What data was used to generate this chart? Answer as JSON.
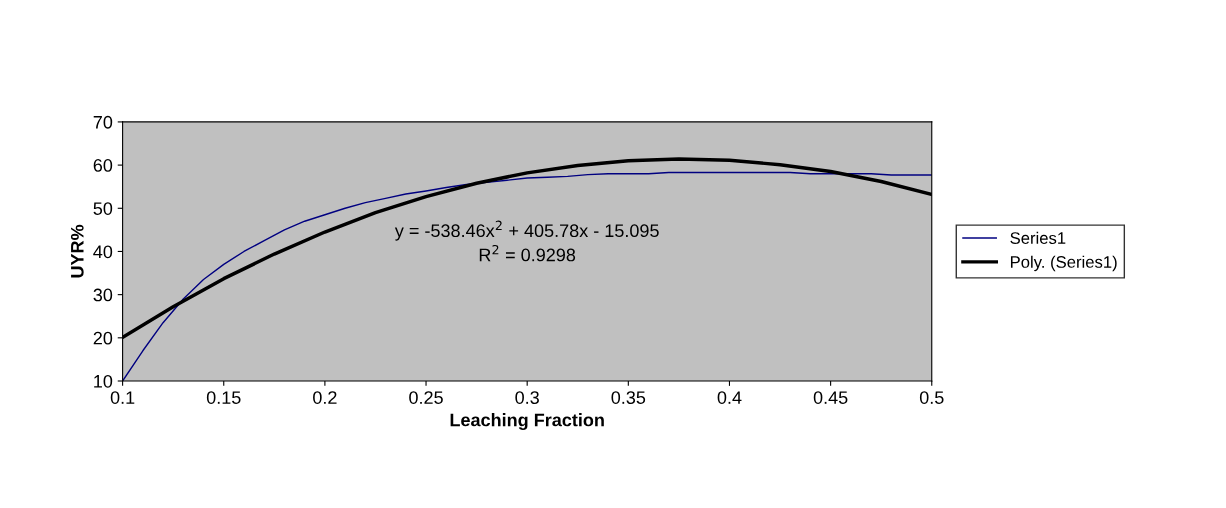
{
  "chart_data": {
    "type": "line",
    "xlabel": "Leaching Fraction",
    "ylabel": "UYR%",
    "xlim": [
      0.1,
      0.5
    ],
    "xticks": [
      0.1,
      0.15,
      0.2,
      0.25,
      0.3,
      0.35,
      0.4,
      0.45,
      0.5
    ],
    "ylim": [
      10,
      70
    ],
    "yticks": [
      10,
      20,
      30,
      40,
      50,
      60,
      70
    ],
    "grid": false,
    "legend": "right",
    "marker": "none",
    "line_style": "solid",
    "annotations": [
      "y = -538.46x$^{2}$ + 405.78x - 15.095",
      "R$^{2}$ = 0.9298"
    ],
    "series": [
      {
        "name": "Series1",
        "color": "#000080",
        "x": [
          0.1,
          0.11,
          0.12,
          0.13,
          0.14,
          0.15,
          0.16,
          0.17,
          0.18,
          0.19,
          0.2,
          0.21,
          0.22,
          0.23,
          0.24,
          0.25,
          0.26,
          0.27,
          0.28,
          0.29,
          0.3,
          0.31,
          0.32,
          0.33,
          0.34,
          0.35,
          0.36,
          0.37,
          0.38,
          0.39,
          0.4,
          0.41,
          0.42,
          0.43,
          0.44,
          0.45,
          0.46,
          0.47,
          0.48,
          0.49,
          0.5
        ],
        "values": [
          10,
          17,
          23.5,
          29,
          33.5,
          37,
          40,
          42.5,
          45,
          47,
          48.5,
          50,
          51.3,
          52.3,
          53.3,
          54,
          54.8,
          55.5,
          56,
          56.5,
          57,
          57.2,
          57.4,
          57.8,
          58,
          58,
          58,
          58.3,
          58.3,
          58.3,
          58.3,
          58.3,
          58.3,
          58.3,
          58,
          58,
          58,
          58,
          57.7,
          57.7,
          57.7
        ]
      },
      {
        "name": "Poly. (Series1)",
        "color": "#000000",
        "x": [
          0.1,
          0.125,
          0.15,
          0.175,
          0.2,
          0.225,
          0.25,
          0.275,
          0.3,
          0.325,
          0.35,
          0.375,
          0.4,
          0.425,
          0.45,
          0.475,
          0.5
        ],
        "values": [
          20.1,
          27.2,
          33.7,
          39.4,
          44.5,
          49.0,
          52.7,
          55.8,
          58.2,
          59.9,
          61.0,
          61.4,
          61.1,
          60.1,
          58.5,
          56.2,
          53.2
        ]
      }
    ]
  }
}
